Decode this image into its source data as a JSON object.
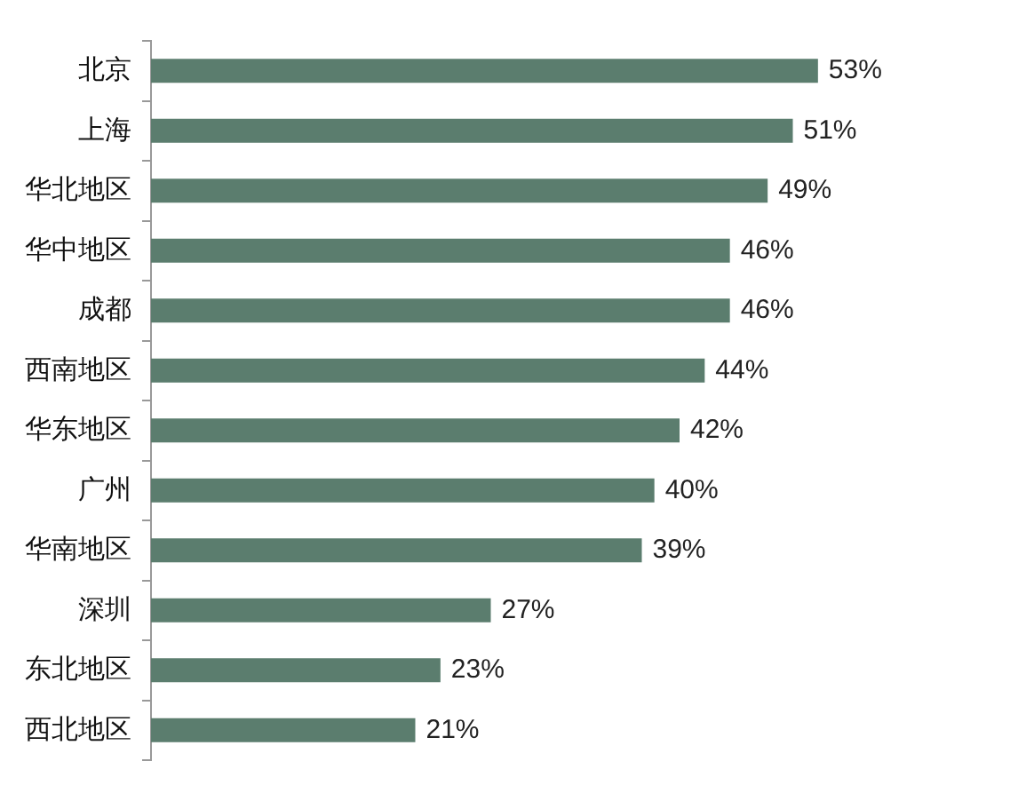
{
  "chart_data": {
    "type": "bar",
    "orientation": "horizontal",
    "categories": [
      "北京",
      "上海",
      "华北地区",
      "华中地区",
      "成都",
      "西南地区",
      "华东地区",
      "广州",
      "华南地区",
      "深圳",
      "东北地区",
      "西北地区"
    ],
    "values": [
      53,
      51,
      49,
      46,
      46,
      44,
      42,
      40,
      39,
      27,
      23,
      21
    ],
    "value_labels": [
      "53%",
      "51%",
      "49%",
      "46%",
      "46%",
      "44%",
      "42%",
      "40%",
      "39%",
      "27%",
      "23%",
      "21%"
    ],
    "color": "#5b7d6e"
  }
}
